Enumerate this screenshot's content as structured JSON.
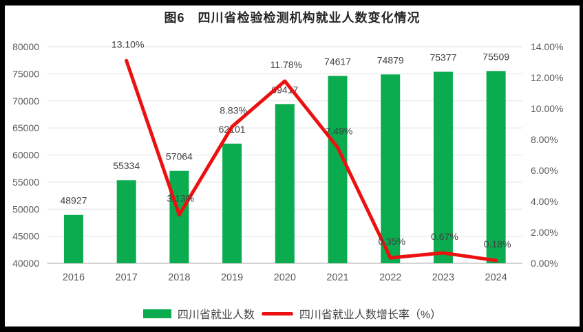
{
  "title": "图6　四川省检验检测机构就业人数变化情况",
  "colors": {
    "bar_green": "#0bab50",
    "line_red": "#ec1111",
    "grid": "#e2e2e2",
    "axis_line": "#c6c6c6",
    "axis_text": "#595959",
    "label_text": "#404040",
    "frame": "#000000",
    "background": "#ffffff"
  },
  "legend": [
    {
      "swatch": "bar",
      "label": "四川省就业人数"
    },
    {
      "swatch": "line",
      "label": "四川省就业人数增长率（%）"
    }
  ],
  "chart_data": {
    "type": "bar+line",
    "title": "图6　四川省检验检测机构就业人数变化情况",
    "categories": [
      "2016",
      "2017",
      "2018",
      "2019",
      "2020",
      "2021",
      "2022",
      "2023",
      "2024"
    ],
    "series": [
      {
        "name": "四川省就业人数",
        "type": "bar",
        "axis": "left",
        "values": [
          48927,
          55334,
          57064,
          62101,
          69417,
          74617,
          74879,
          75377,
          75509
        ],
        "labels": [
          "48927",
          "55334",
          "57064",
          "62101",
          "69417",
          "74617",
          "74879",
          "75377",
          "75509"
        ]
      },
      {
        "name": "四川省就业人数增长率（%）",
        "type": "line",
        "axis": "right",
        "values": [
          null,
          13.1,
          3.13,
          8.83,
          11.78,
          7.49,
          0.35,
          0.67,
          0.18
        ],
        "labels": [
          null,
          "13.10%",
          "3.13%",
          "8.83%",
          "11.78%",
          "7.49%",
          "0.35%",
          "0.67%",
          "0.18%"
        ]
      }
    ],
    "left_axis": {
      "min": 40000,
      "max": 80000,
      "step": 5000,
      "tick_labels": [
        "40000",
        "45000",
        "50000",
        "55000",
        "60000",
        "65000",
        "70000",
        "75000",
        "80000"
      ]
    },
    "right_axis": {
      "min": 0,
      "max": 14,
      "step": 2,
      "tick_labels": [
        "0.00%",
        "2.00%",
        "4.00%",
        "6.00%",
        "8.00%",
        "10.00%",
        "12.00%",
        "14.00%"
      ]
    },
    "grid": true,
    "legend_position": "bottom"
  }
}
